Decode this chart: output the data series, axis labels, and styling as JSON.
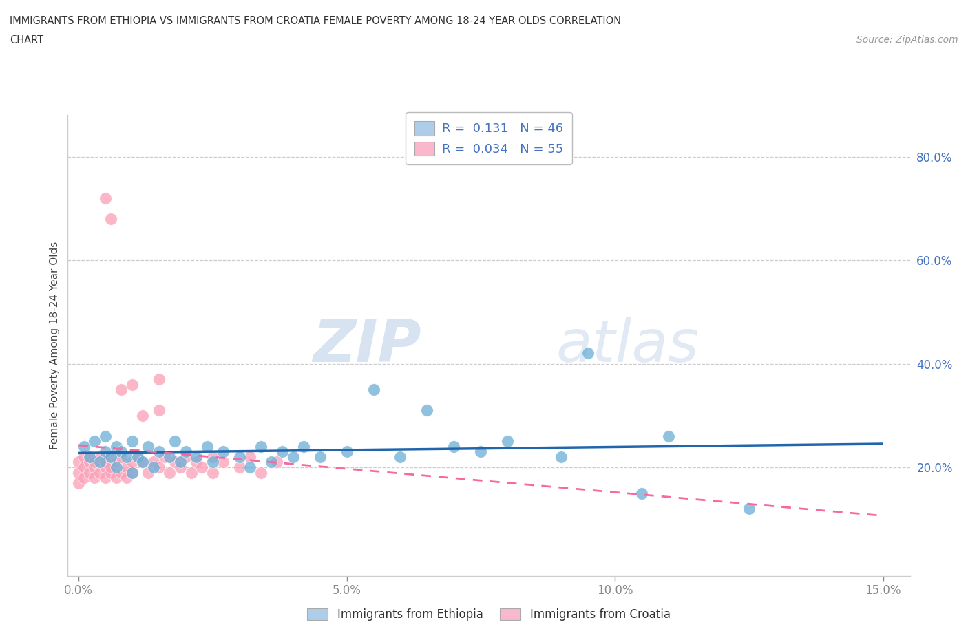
{
  "title_line1": "IMMIGRANTS FROM ETHIOPIA VS IMMIGRANTS FROM CROATIA FEMALE POVERTY AMONG 18-24 YEAR OLDS CORRELATION",
  "title_line2": "CHART",
  "source": "Source: ZipAtlas.com",
  "ylabel": "Female Poverty Among 18-24 Year Olds",
  "xlim": [
    -0.002,
    0.155
  ],
  "ylim": [
    -0.01,
    0.88
  ],
  "ytick_vals": [
    0.2,
    0.4,
    0.6,
    0.8
  ],
  "ytick_labels": [
    "20.0%",
    "40.0%",
    "60.0%",
    "80.0%"
  ],
  "xtick_vals": [
    0.0,
    0.05,
    0.1,
    0.15
  ],
  "xtick_labels": [
    "0.0%",
    "5.0%",
    "10.0%",
    "15.0%"
  ],
  "color_ethiopia": "#6baed6",
  "color_croatia": "#fa9fb5",
  "color_legend_eth": "#aecde8",
  "color_legend_cro": "#f9b8cc",
  "color_trend_eth": "#2166ac",
  "color_trend_cro": "#f768a1",
  "R_ethiopia": "0.131",
  "N_ethiopia": "46",
  "R_croatia": "0.034",
  "N_croatia": "55",
  "watermark_ZIP": "ZIP",
  "watermark_atlas": "atlas",
  "label_ethiopia": "Immigrants from Ethiopia",
  "label_croatia": "Immigrants from Croatia",
  "eth_x": [
    0.001,
    0.002,
    0.003,
    0.004,
    0.005,
    0.005,
    0.006,
    0.007,
    0.007,
    0.008,
    0.009,
    0.01,
    0.01,
    0.011,
    0.012,
    0.013,
    0.014,
    0.015,
    0.017,
    0.018,
    0.019,
    0.02,
    0.022,
    0.024,
    0.025,
    0.027,
    0.03,
    0.032,
    0.034,
    0.036,
    0.038,
    0.04,
    0.042,
    0.045,
    0.05,
    0.055,
    0.06,
    0.065,
    0.07,
    0.075,
    0.08,
    0.09,
    0.095,
    0.105,
    0.11,
    0.125
  ],
  "eth_y": [
    0.24,
    0.22,
    0.25,
    0.21,
    0.23,
    0.26,
    0.22,
    0.24,
    0.2,
    0.23,
    0.22,
    0.25,
    0.19,
    0.22,
    0.21,
    0.24,
    0.2,
    0.23,
    0.22,
    0.25,
    0.21,
    0.23,
    0.22,
    0.24,
    0.21,
    0.23,
    0.22,
    0.2,
    0.24,
    0.21,
    0.23,
    0.22,
    0.24,
    0.22,
    0.23,
    0.35,
    0.22,
    0.31,
    0.24,
    0.23,
    0.25,
    0.22,
    0.42,
    0.15,
    0.26,
    0.12
  ],
  "cro_x": [
    0.0,
    0.0,
    0.0,
    0.001,
    0.001,
    0.001,
    0.002,
    0.002,
    0.002,
    0.003,
    0.003,
    0.003,
    0.004,
    0.004,
    0.005,
    0.005,
    0.005,
    0.006,
    0.006,
    0.006,
    0.007,
    0.007,
    0.008,
    0.008,
    0.009,
    0.009,
    0.01,
    0.01,
    0.011,
    0.012,
    0.012,
    0.013,
    0.014,
    0.015,
    0.015,
    0.016,
    0.017,
    0.018,
    0.019,
    0.02,
    0.021,
    0.022,
    0.023,
    0.025,
    0.025,
    0.027,
    0.03,
    0.032,
    0.034,
    0.037,
    0.005,
    0.006,
    0.008,
    0.01,
    0.015
  ],
  "cro_y": [
    0.21,
    0.19,
    0.17,
    0.22,
    0.2,
    0.18,
    0.21,
    0.19,
    0.22,
    0.2,
    0.18,
    0.21,
    0.19,
    0.22,
    0.2,
    0.18,
    0.21,
    0.19,
    0.22,
    0.2,
    0.18,
    0.21,
    0.19,
    0.22,
    0.2,
    0.18,
    0.21,
    0.19,
    0.22,
    0.21,
    0.3,
    0.19,
    0.21,
    0.2,
    0.31,
    0.22,
    0.19,
    0.21,
    0.2,
    0.22,
    0.19,
    0.21,
    0.2,
    0.22,
    0.19,
    0.21,
    0.2,
    0.22,
    0.19,
    0.21,
    0.72,
    0.68,
    0.35,
    0.36,
    0.37
  ]
}
